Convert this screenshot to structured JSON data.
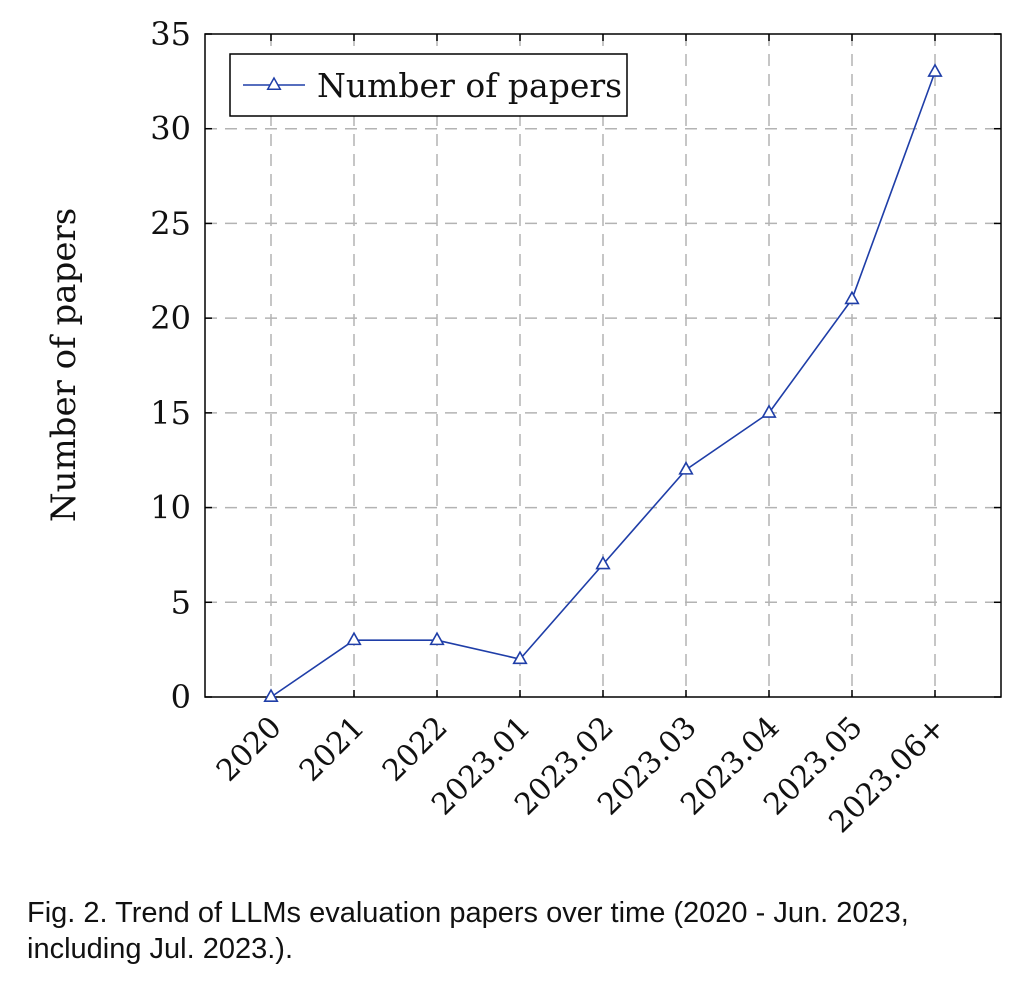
{
  "chart_data": {
    "type": "line",
    "categories": [
      "2020",
      "2021",
      "2022",
      "2023.01",
      "2023.02",
      "2023.03",
      "2023.04",
      "2023.05",
      "2023.06+"
    ],
    "series": [
      {
        "name": "Number of papers",
        "values": [
          0,
          3,
          3,
          2,
          7,
          12,
          15,
          21,
          33
        ],
        "color": "#1f3ea8",
        "marker": "triangle"
      }
    ],
    "ylabel": "Number of papers",
    "xlabel": "",
    "ylim": [
      0,
      35
    ],
    "yticks": [
      0,
      5,
      10,
      15,
      20,
      25,
      30,
      35
    ],
    "grid": true,
    "legend": "top-left"
  },
  "caption": "Fig. 2. Trend of LLMs evaluation papers over time (2020 - Jun. 2023, including Jul. 2023.)."
}
